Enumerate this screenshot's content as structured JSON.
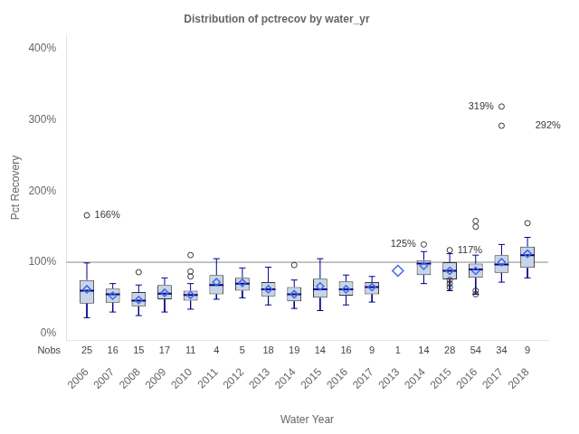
{
  "chart_data": {
    "type": "box",
    "title": "Distribution of pctrecov by water_yr",
    "xlabel": "Water Year",
    "ylabel": "Pct Recovery",
    "categories": [
      "2006",
      "2007",
      "2008",
      "2009",
      "2010",
      "2011",
      "2012",
      "2013",
      "2014",
      "2015",
      "2016",
      "2017",
      "2013",
      "2014",
      "2015",
      "2016",
      "2017",
      "2018"
    ],
    "boxes": [
      {
        "q1": 42,
        "median": 60,
        "q3": 75,
        "whislo": 22,
        "whishi": 99,
        "mean": 62,
        "fliers": [
          166
        ]
      },
      {
        "q1": 43,
        "median": 55,
        "q3": 63,
        "whislo": 30,
        "whishi": 70,
        "mean": 53,
        "fliers": []
      },
      {
        "q1": 38,
        "median": 46,
        "q3": 58,
        "whislo": 25,
        "whishi": 68,
        "mean": 47,
        "fliers": [
          86
        ]
      },
      {
        "q1": 48,
        "median": 56,
        "q3": 68,
        "whislo": 30,
        "whishi": 78,
        "mean": 57,
        "fliers": []
      },
      {
        "q1": 46,
        "median": 54,
        "q3": 60,
        "whislo": 34,
        "whishi": 70,
        "mean": 54,
        "fliers": [
          80,
          87,
          110
        ]
      },
      {
        "q1": 55,
        "median": 68,
        "q3": 82,
        "whislo": 48,
        "whishi": 105,
        "mean": 72,
        "fliers": []
      },
      {
        "q1": 60,
        "median": 70,
        "q3": 78,
        "whislo": 50,
        "whishi": 92,
        "mean": 71,
        "fliers": []
      },
      {
        "q1": 52,
        "median": 62,
        "q3": 72,
        "whislo": 40,
        "whishi": 93,
        "mean": 62,
        "fliers": []
      },
      {
        "q1": 45,
        "median": 55,
        "q3": 65,
        "whislo": 35,
        "whishi": 75,
        "mean": 55,
        "fliers": [
          96
        ]
      },
      {
        "q1": 50,
        "median": 62,
        "q3": 77,
        "whislo": 32,
        "whishi": 105,
        "mean": 66,
        "fliers": []
      },
      {
        "q1": 53,
        "median": 62,
        "q3": 73,
        "whislo": 40,
        "whishi": 82,
        "mean": 62,
        "fliers": []
      },
      {
        "q1": 55,
        "median": 65,
        "q3": 72,
        "whislo": 44,
        "whishi": 80,
        "mean": 65,
        "fliers": []
      },
      {
        "mean": 88,
        "fliers": []
      },
      {
        "q1": 82,
        "median": 98,
        "q3": 103,
        "whislo": 70,
        "whishi": 115,
        "mean": 95,
        "fliers": [
          125
        ]
      },
      {
        "q1": 76,
        "median": 88,
        "q3": 100,
        "whislo": 60,
        "whishi": 112,
        "mean": 88,
        "fliers": [
          117,
          65,
          70,
          75
        ]
      },
      {
        "q1": 78,
        "median": 90,
        "q3": 98,
        "whislo": 55,
        "whishi": 110,
        "mean": 88,
        "fliers": [
          55,
          60,
          150,
          158
        ]
      },
      {
        "q1": 85,
        "median": 97,
        "q3": 110,
        "whislo": 72,
        "whishi": 125,
        "mean": 100,
        "fliers": [
          319,
          292
        ]
      },
      {
        "q1": 92,
        "median": 110,
        "q3": 122,
        "whislo": 78,
        "whishi": 135,
        "mean": 112,
        "fliers": [
          155
        ]
      }
    ],
    "nobs_label": "Nobs",
    "nobs": [
      25,
      16,
      15,
      17,
      11,
      4,
      5,
      18,
      19,
      14,
      16,
      9,
      1,
      14,
      28,
      54,
      34,
      9
    ],
    "annotations": [
      {
        "category_index": 0,
        "y": 166,
        "label": "166%",
        "align": "left"
      },
      {
        "category_index": 16,
        "y": 319,
        "label": "319%",
        "align": "right"
      },
      {
        "category_index": 17,
        "y": 292,
        "label": "292%",
        "align": "left"
      },
      {
        "category_index": 13,
        "y": 125,
        "label": "125%",
        "align": "right"
      },
      {
        "category_index": 14,
        "y": 117,
        "label": "117%",
        "align": "left"
      }
    ],
    "reference_line": {
      "y": 100,
      "color": "#888888"
    },
    "colors": {
      "box": "#c8d4e8",
      "box_edge": "#333333",
      "median": "#00008b",
      "whisker": "#00008b",
      "mean": "#4169e1",
      "outlier": "#333333"
    },
    "ylim": [
      -10,
      420
    ],
    "yticks": [
      {
        "value": 0,
        "label": "0%"
      },
      {
        "value": 100,
        "label": "100%"
      },
      {
        "value": 200,
        "label": "200%"
      },
      {
        "value": 300,
        "label": "300%"
      },
      {
        "value": 400,
        "label": "400%"
      }
    ],
    "grid": false
  }
}
